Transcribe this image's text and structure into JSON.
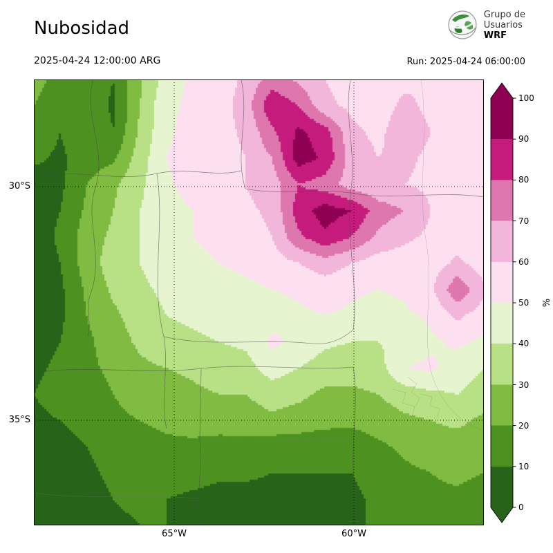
{
  "header": {
    "title": "Nubosidad",
    "valid_time": "2025-04-24 12:00:00 ARG",
    "run_time": "Run: 2025-04-24 06:00:00"
  },
  "logo": {
    "line1": "Grupo de",
    "line2": "Usuarios",
    "line3": "WRF"
  },
  "map": {
    "lat_ticks": [
      "30°S",
      "35°S"
    ],
    "lon_ticks": [
      "65°W",
      "60°W"
    ]
  },
  "colorbar": {
    "unit": "%",
    "ticks": [
      "0",
      "10",
      "20",
      "30",
      "40",
      "50",
      "60",
      "70",
      "80",
      "90",
      "100"
    ],
    "colors": [
      "#276419",
      "#4d9221",
      "#7fbc41",
      "#b8e186",
      "#e6f5d0",
      "#fde0ef",
      "#f1b6da",
      "#de77ae",
      "#c51b7d",
      "#8e0152"
    ]
  },
  "chart_data": {
    "type": "heatmap",
    "title": "Nubosidad",
    "unit": "%",
    "valid_time": "2025-04-24 12:00:00 ARG",
    "run": "2025-04-24 06:00:00",
    "levels": [
      0,
      10,
      20,
      30,
      40,
      50,
      60,
      70,
      80,
      90,
      100
    ],
    "lat_gridlines": [
      "30°S",
      "35°S"
    ],
    "lon_gridlines": [
      "65°W",
      "60°W"
    ],
    "legend_position": "right",
    "grid_orientation": "row 0 = north (top), col 0 = west (left); values are cloud cover in %",
    "grid": [
      [
        25,
        15,
        18,
        10,
        28,
        45,
        52,
        55,
        62,
        75,
        68,
        60,
        56,
        54,
        58,
        60,
        54,
        50
      ],
      [
        20,
        12,
        18,
        8,
        30,
        48,
        52,
        55,
        65,
        88,
        80,
        62,
        58,
        56,
        62,
        58,
        52,
        50
      ],
      [
        18,
        10,
        20,
        10,
        32,
        48,
        54,
        56,
        62,
        78,
        92,
        85,
        62,
        58,
        65,
        60,
        54,
        50
      ],
      [
        12,
        8,
        15,
        18,
        35,
        50,
        55,
        55,
        60,
        70,
        95,
        88,
        65,
        60,
        62,
        58,
        55,
        52
      ],
      [
        5,
        8,
        20,
        28,
        38,
        48,
        55,
        58,
        60,
        65,
        80,
        75,
        65,
        62,
        60,
        58,
        55,
        52
      ],
      [
        5,
        10,
        22,
        30,
        40,
        45,
        50,
        55,
        58,
        62,
        85,
        95,
        90,
        75,
        70,
        60,
        56,
        52
      ],
      [
        4,
        12,
        25,
        32,
        40,
        45,
        50,
        52,
        56,
        60,
        78,
        88,
        80,
        68,
        62,
        58,
        55,
        52
      ],
      [
        4,
        10,
        25,
        35,
        40,
        45,
        48,
        50,
        52,
        55,
        60,
        65,
        60,
        55,
        55,
        55,
        62,
        55
      ],
      [
        4,
        8,
        22,
        32,
        38,
        42,
        45,
        46,
        48,
        50,
        52,
        55,
        52,
        50,
        52,
        58,
        78,
        62
      ],
      [
        5,
        8,
        20,
        28,
        35,
        40,
        42,
        44,
        45,
        46,
        48,
        50,
        48,
        46,
        48,
        52,
        62,
        55
      ],
      [
        6,
        10,
        18,
        25,
        32,
        36,
        38,
        40,
        42,
        52,
        48,
        42,
        40,
        40,
        42,
        48,
        52,
        48
      ],
      [
        8,
        12,
        18,
        22,
        28,
        30,
        32,
        35,
        36,
        45,
        40,
        35,
        34,
        36,
        50,
        52,
        45,
        40
      ],
      [
        10,
        14,
        16,
        20,
        24,
        26,
        28,
        30,
        30,
        34,
        32,
        28,
        28,
        30,
        35,
        38,
        40,
        35
      ],
      [
        8,
        10,
        14,
        18,
        20,
        22,
        24,
        25,
        26,
        28,
        26,
        24,
        22,
        25,
        28,
        30,
        32,
        28
      ],
      [
        5,
        6,
        10,
        14,
        16,
        18,
        18,
        16,
        16,
        14,
        14,
        12,
        14,
        18,
        22,
        25,
        26,
        24
      ],
      [
        4,
        5,
        8,
        12,
        14,
        15,
        14,
        12,
        12,
        10,
        10,
        10,
        10,
        14,
        18,
        20,
        22,
        20
      ],
      [
        3,
        4,
        6,
        10,
        12,
        10,
        8,
        6,
        6,
        6,
        6,
        6,
        8,
        12,
        15,
        18,
        18,
        16
      ],
      [
        3,
        3,
        5,
        8,
        10,
        10,
        10,
        8,
        8,
        6,
        5,
        5,
        8,
        12,
        14,
        16,
        18,
        15
      ]
    ]
  }
}
